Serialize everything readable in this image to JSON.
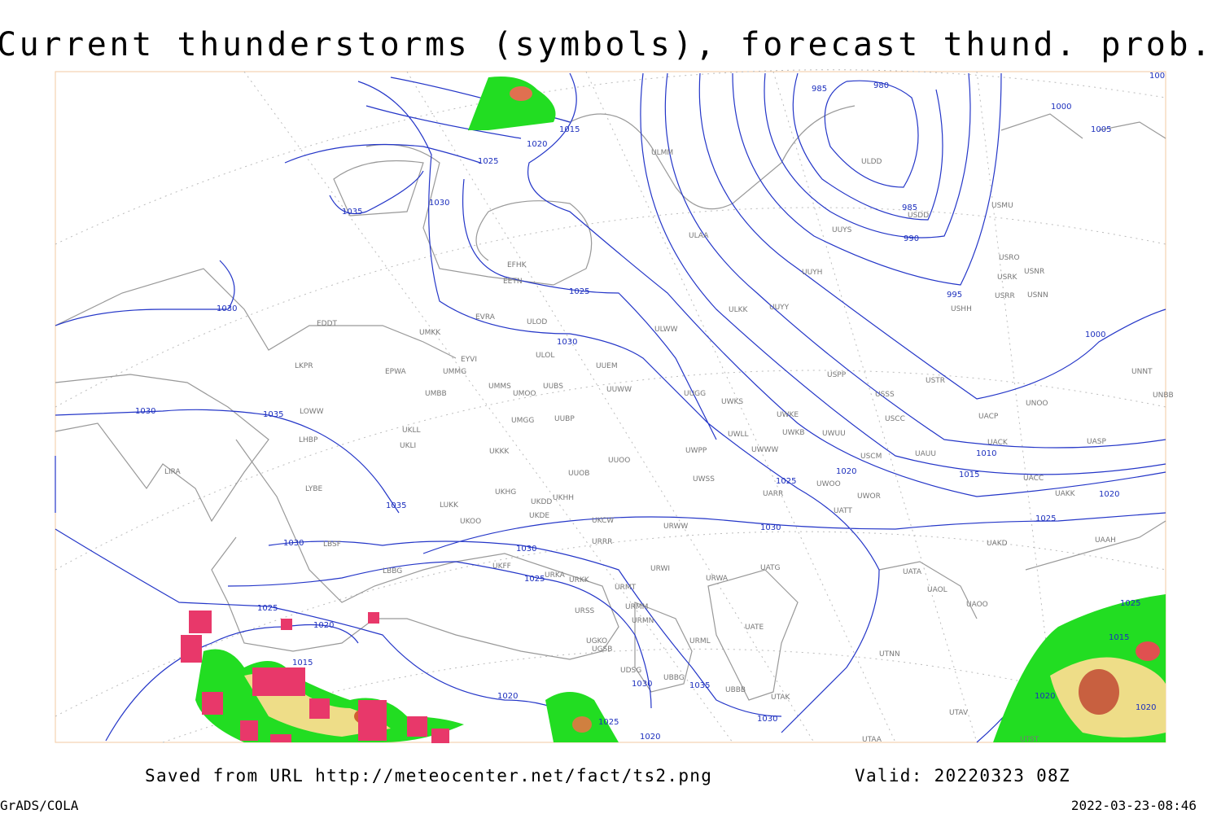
{
  "header": {
    "title": "Current thunderstorms (symbols), forecast thund. prob. (%, shaded)"
  },
  "footer": {
    "source": "Saved from URL http://meteocenter.net/fact/ts2.png",
    "valid": "Valid: 20220323 08Z",
    "software": "GrADS/COLA",
    "timestamp": "2022-03-23-08:46"
  },
  "stations": [
    "ULMM",
    "ULDD",
    "USDD",
    "USMU",
    "ULAA",
    "UUYS",
    "USRO",
    "USRK",
    "USNR",
    "UUYH",
    "USRR",
    "USNN",
    "USHH",
    "ULKK",
    "UUYY",
    "EFHK",
    "EETN",
    "EVRA",
    "ULOD",
    "ULWW",
    "EDDT",
    "UMKK",
    "ULOL",
    "UUEM",
    "EYVI",
    "LKPR",
    "EPWA",
    "UMMG",
    "USPP",
    "USTR",
    "UNNT",
    "UMMS",
    "UUBS",
    "UMOO",
    "UUWW",
    "UMBB",
    "UUGG",
    "UWKS",
    "USSS",
    "UNOO",
    "UNBB",
    "LOWW",
    "UWKE",
    "USCC",
    "UACP",
    "UMGG",
    "UUBP",
    "UKLL",
    "UWLL",
    "UWKB",
    "UWUU",
    "UACK",
    "UASP",
    "LHBP",
    "UKLI",
    "UKKK",
    "UWWW",
    "UWPP",
    "UAUU",
    "USCM",
    "UUOO",
    "LIRA",
    "UUOB",
    "UWSS",
    "UACC",
    "LYBE",
    "UWOO",
    "UWOR",
    "UAKK",
    "UKHG",
    "UKDD",
    "UKHH",
    "UARR",
    "LUKK",
    "UKOO",
    "UKDE",
    "UKCW",
    "URWW",
    "UATT",
    "UAKD",
    "UAAH",
    "LBSF",
    "URRR",
    "UKFF",
    "LBBG",
    "URKA",
    "URKK",
    "URWI",
    "UATG",
    "UATA",
    "URWA",
    "URMT",
    "UAOL",
    "UAOO",
    "URMM",
    "URSS",
    "UATE",
    "URMN",
    "URML",
    "UGKO",
    "UGSB",
    "UTNN",
    "UBBG",
    "UBBB",
    "UDSG",
    "UTAK",
    "UTAV",
    "UTAA",
    "UTST"
  ],
  "isobar_labels": [
    985,
    980,
    1000,
    1005,
    1015,
    1020,
    1025,
    1030,
    1035,
    985,
    990,
    995,
    1025,
    1030,
    1030,
    1000,
    1030,
    1035,
    1010,
    1015,
    1020,
    1025,
    1020,
    1035,
    1025,
    1030,
    1030,
    1030,
    1025,
    1025,
    1020,
    1015,
    1030,
    1035,
    1020,
    1025,
    1020,
    1030,
    1020,
    1020,
    1025,
    1015,
    100
  ]
}
